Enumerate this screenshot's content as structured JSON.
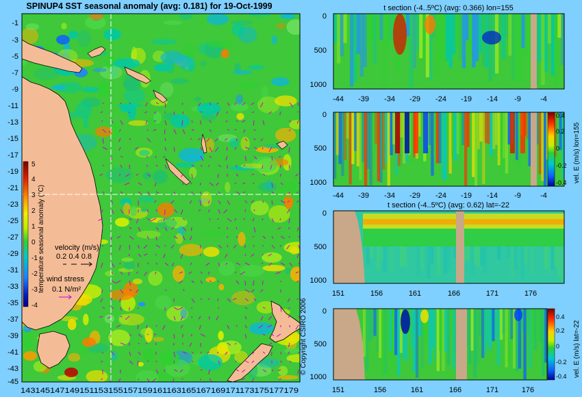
{
  "main_title": "SPINUP4 SST seasonal anomaly (avg: 0.181) for 19-Oct-1999",
  "copyright": "© Copyright CSIRO 2006",
  "colors": {
    "background": "#7fd0ff",
    "land": "#f4bc96",
    "section_land": "#c8a888",
    "ocean_base": "#3ec83a",
    "vector": "#d000d0",
    "crosshair": "#ffffff"
  },
  "map": {
    "y_ticks": [
      "-1",
      "-3",
      "-5",
      "-7",
      "-9",
      "-11",
      "-13",
      "-15",
      "-17",
      "-19",
      "-21",
      "-23",
      "-25",
      "-27",
      "-29",
      "-31",
      "-33",
      "-35",
      "-37",
      "-39",
      "-41",
      "-43",
      "-45"
    ],
    "x_tick_string": "143145147149151153155157159161163165167169171173175177179",
    "colorbar": {
      "label": "temperature seasonal anomaly (°C)",
      "ticks": [
        "5",
        "4",
        "3",
        "2",
        "1",
        "0",
        "-1",
        "-2",
        "-3",
        "-4"
      ]
    },
    "velocity_key": {
      "title": "velocity (m/s)",
      "values": "0.2 0.4 0.8"
    },
    "wind_key": {
      "title": "wind stress",
      "value": "0.1 N/m²"
    }
  },
  "chart_data": [
    {
      "type": "heatmap",
      "title": "SPINUP4 SST seasonal anomaly (avg: 0.181) for 19-Oct-1999",
      "xlabel": "",
      "ylabel": "",
      "xlim": [
        143,
        180
      ],
      "ylim": [
        -45,
        0
      ],
      "colorbar": {
        "label": "temperature seasonal anomaly (°C)",
        "range": [
          -4,
          5
        ]
      },
      "crosshair": {
        "lon": 155,
        "lat": -22
      }
    },
    {
      "type": "heatmap",
      "title": "t section (-4..5ºC) (avg: 0.366) lon=155",
      "x_ticks": [
        "-44",
        "-39",
        "-34",
        "-29",
        "-24",
        "-19",
        "-14",
        "-9",
        "-4"
      ],
      "y_ticks": [
        "0",
        "500",
        "1000"
      ],
      "xlim": [
        -45,
        0
      ],
      "ylim": [
        1050,
        0
      ]
    },
    {
      "type": "heatmap",
      "title": "",
      "x_ticks": [
        "-44",
        "-39",
        "-34",
        "-29",
        "-24",
        "-19",
        "-14",
        "-9",
        "-4"
      ],
      "y_ticks": [
        "0",
        "500",
        "1000"
      ],
      "colorbar": {
        "label": "vel. E (m/s) lon=155",
        "ticks": [
          "0.4",
          "0.2",
          "0",
          "-0.2",
          "-0.4"
        ]
      },
      "xlim": [
        -45,
        0
      ],
      "ylim": [
        1050,
        0
      ]
    },
    {
      "type": "heatmap",
      "title": "t section (-4..5ºC) (avg: 0.62) lat=-22",
      "x_ticks": [
        "151",
        "156",
        "161",
        "166",
        "171",
        "176"
      ],
      "y_ticks": [
        "0",
        "500",
        "1000"
      ],
      "xlim": [
        150,
        180
      ],
      "ylim": [
        1050,
        0
      ]
    },
    {
      "type": "heatmap",
      "title": "",
      "x_ticks": [
        "151",
        "156",
        "161",
        "166",
        "171",
        "176"
      ],
      "y_ticks": [
        "0",
        "500",
        "1000"
      ],
      "colorbar": {
        "label": "vel. E (m/s) lat=-22",
        "ticks": [
          "0.4",
          "0.2",
          "0",
          "-0.2",
          "-0.4"
        ]
      },
      "xlim": [
        150,
        180
      ],
      "ylim": [
        1050,
        0
      ]
    }
  ]
}
